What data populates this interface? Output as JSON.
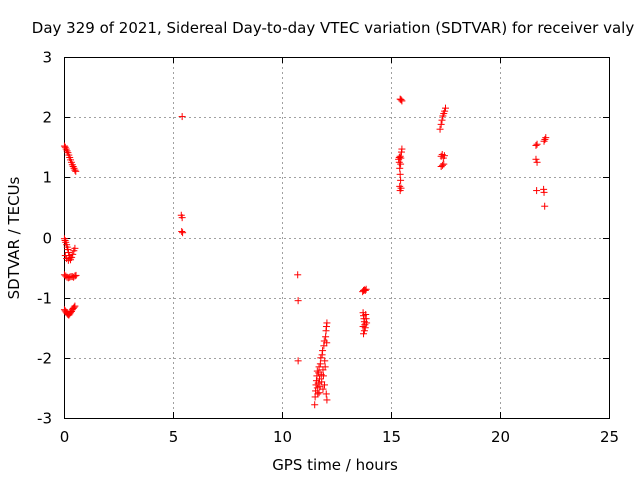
{
  "chart_data": {
    "type": "scatter",
    "title": "Day 329 of 2021, Sidereal Day-to-day VTEC variation (SDTVAR) for receiver valy",
    "xlabel": "GPS time / hours",
    "ylabel": "SDTVAR / TECUs",
    "xlim": [
      0,
      25
    ],
    "ylim": [
      -3,
      3
    ],
    "xticks": [
      "0",
      "5",
      "10",
      "15",
      "20",
      "25"
    ],
    "yticks": [
      "-3",
      "-2",
      "-1",
      "0",
      "1",
      "2",
      "3"
    ],
    "grid": true,
    "marker": "plus",
    "color": "#ff0000",
    "series": [
      {
        "name": "SDTVAR",
        "points": [
          [
            0.02,
            1.52
          ],
          [
            0.06,
            1.5
          ],
          [
            0.1,
            1.47
          ],
          [
            0.14,
            1.44
          ],
          [
            0.18,
            1.41
          ],
          [
            0.22,
            1.37
          ],
          [
            0.26,
            1.33
          ],
          [
            0.3,
            1.29
          ],
          [
            0.34,
            1.25
          ],
          [
            0.38,
            1.21
          ],
          [
            0.42,
            1.18
          ],
          [
            0.46,
            1.15
          ],
          [
            0.5,
            1.12
          ],
          [
            0.54,
            1.1
          ],
          [
            0.02,
            -0.02
          ],
          [
            0.05,
            -0.05
          ],
          [
            0.08,
            -0.08
          ],
          [
            0.12,
            -0.12
          ],
          [
            0.15,
            -0.16
          ],
          [
            0.18,
            -0.2
          ],
          [
            0.21,
            -0.25
          ],
          [
            0.24,
            -0.3
          ],
          [
            0.27,
            -0.34
          ],
          [
            0.3,
            -0.37
          ],
          [
            0.35,
            -0.33
          ],
          [
            0.4,
            -0.28
          ],
          [
            0.45,
            -0.22
          ],
          [
            0.5,
            -0.18
          ],
          [
            0.2,
            -0.38
          ],
          [
            0.12,
            -0.35
          ],
          [
            0.06,
            -0.3
          ],
          [
            0.02,
            -0.62
          ],
          [
            0.08,
            -0.64
          ],
          [
            0.14,
            -0.66
          ],
          [
            0.2,
            -0.67
          ],
          [
            0.26,
            -0.66
          ],
          [
            0.32,
            -0.65
          ],
          [
            0.38,
            -0.65
          ],
          [
            0.44,
            -0.66
          ],
          [
            0.5,
            -0.64
          ],
          [
            0.55,
            -0.63
          ],
          [
            0.02,
            -1.2
          ],
          [
            0.06,
            -1.22
          ],
          [
            0.1,
            -1.24
          ],
          [
            0.14,
            -1.26
          ],
          [
            0.18,
            -1.28
          ],
          [
            0.22,
            -1.29
          ],
          [
            0.26,
            -1.27
          ],
          [
            0.3,
            -1.25
          ],
          [
            0.34,
            -1.23
          ],
          [
            0.38,
            -1.2
          ],
          [
            0.42,
            -1.18
          ],
          [
            0.46,
            -1.16
          ],
          [
            0.5,
            -1.14
          ],
          [
            5.42,
            2.01
          ],
          [
            5.38,
            0.37
          ],
          [
            5.42,
            0.33
          ],
          [
            5.4,
            0.1
          ],
          [
            5.44,
            0.08
          ],
          [
            10.72,
            -0.62
          ],
          [
            10.74,
            -1.05
          ],
          [
            10.74,
            -2.05
          ],
          [
            11.5,
            -2.78
          ],
          [
            11.52,
            -2.65
          ],
          [
            11.54,
            -2.55
          ],
          [
            11.56,
            -2.45
          ],
          [
            11.58,
            -2.38
          ],
          [
            11.6,
            -2.3
          ],
          [
            11.62,
            -2.5
          ],
          [
            11.64,
            -2.6
          ],
          [
            11.66,
            -2.42
          ],
          [
            11.68,
            -2.25
          ],
          [
            11.7,
            -2.15
          ],
          [
            11.72,
            -2.35
          ],
          [
            11.74,
            -2.48
          ],
          [
            11.76,
            -2.1
          ],
          [
            11.78,
            -2.0
          ],
          [
            11.8,
            -2.28
          ],
          [
            11.82,
            -2.4
          ],
          [
            11.84,
            -1.95
          ],
          [
            11.86,
            -1.88
          ],
          [
            11.88,
            -2.2
          ],
          [
            11.9,
            -2.3
          ],
          [
            11.92,
            -1.8
          ],
          [
            11.94,
            -1.72
          ],
          [
            11.96,
            -2.05
          ],
          [
            11.98,
            -2.15
          ],
          [
            12.0,
            -1.65
          ],
          [
            12.02,
            -1.55
          ],
          [
            12.04,
            -1.48
          ],
          [
            12.06,
            -1.42
          ],
          [
            12.03,
            -2.6
          ],
          [
            12.06,
            -2.7
          ],
          [
            11.88,
            -2.52
          ],
          [
            11.7,
            -2.58
          ],
          [
            11.62,
            -2.22
          ],
          [
            11.95,
            -2.45
          ],
          [
            12.05,
            -1.75
          ],
          [
            13.7,
            -0.9
          ],
          [
            13.74,
            -0.88
          ],
          [
            13.78,
            -0.87
          ],
          [
            13.82,
            -0.88
          ],
          [
            13.86,
            -0.86
          ],
          [
            13.72,
            -1.25
          ],
          [
            13.74,
            -1.3
          ],
          [
            13.76,
            -1.35
          ],
          [
            13.78,
            -1.4
          ],
          [
            13.8,
            -1.45
          ],
          [
            13.82,
            -1.5
          ],
          [
            13.78,
            -1.55
          ],
          [
            13.74,
            -1.6
          ],
          [
            13.84,
            -1.28
          ],
          [
            13.86,
            -1.35
          ],
          [
            13.88,
            -1.42
          ],
          [
            13.72,
            -1.48
          ],
          [
            15.42,
            2.3
          ],
          [
            15.46,
            2.29
          ],
          [
            15.5,
            2.27
          ],
          [
            15.35,
            1.3
          ],
          [
            15.38,
            1.33
          ],
          [
            15.42,
            1.35
          ],
          [
            15.45,
            1.32
          ],
          [
            15.48,
            1.42
          ],
          [
            15.5,
            1.47
          ],
          [
            15.4,
            1.15
          ],
          [
            15.42,
            1.05
          ],
          [
            15.44,
            0.95
          ],
          [
            15.4,
            0.85
          ],
          [
            15.42,
            0.78
          ],
          [
            15.46,
            0.82
          ],
          [
            15.38,
            1.25
          ],
          [
            15.44,
            1.22
          ],
          [
            17.25,
            1.8
          ],
          [
            17.3,
            1.88
          ],
          [
            17.34,
            1.95
          ],
          [
            17.38,
            2.02
          ],
          [
            17.42,
            2.06
          ],
          [
            17.46,
            2.1
          ],
          [
            17.5,
            2.15
          ],
          [
            17.3,
            1.35
          ],
          [
            17.35,
            1.38
          ],
          [
            17.4,
            1.32
          ],
          [
            17.45,
            1.36
          ],
          [
            17.3,
            1.18
          ],
          [
            17.36,
            1.2
          ],
          [
            17.42,
            1.22
          ],
          [
            21.65,
            1.53
          ],
          [
            21.7,
            1.55
          ],
          [
            21.65,
            1.3
          ],
          [
            21.7,
            1.25
          ],
          [
            21.68,
            0.78
          ],
          [
            22.0,
            0.8
          ],
          [
            22.02,
            0.75
          ],
          [
            22.05,
            0.52
          ],
          [
            22.02,
            1.6
          ],
          [
            22.06,
            1.63
          ],
          [
            22.1,
            1.66
          ]
        ]
      }
    ]
  }
}
